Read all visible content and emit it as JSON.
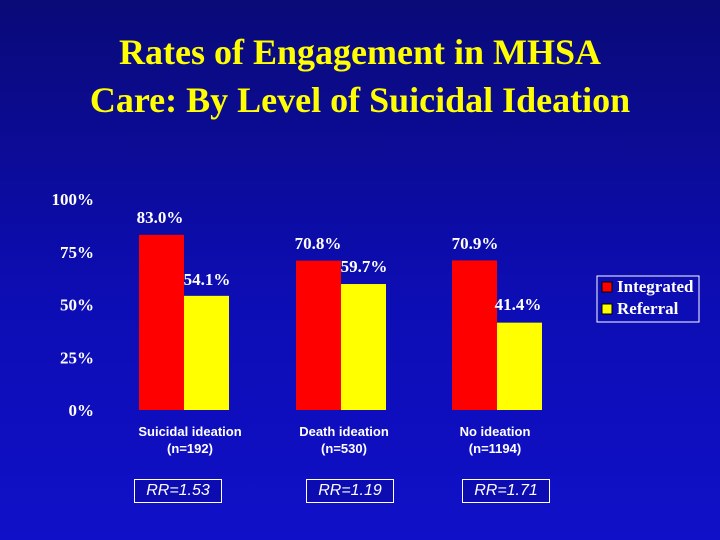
{
  "title_lines": [
    "Rates of Engagement in MHSA",
    "Care: By Level of Suicidal Ideation"
  ],
  "colors": {
    "integrated": "#ff0000",
    "referral": "#ffff00",
    "title": "#ffff00",
    "text": "#ffffff"
  },
  "chart_data": {
    "type": "bar",
    "title": "Rates of Engagement in MHSA Care: By Level of Suicidal Ideation",
    "categories": [
      [
        "Suicidal ideation",
        "(n=192)"
      ],
      [
        "Death ideation",
        "(n=530)"
      ],
      [
        "No ideation",
        "(n=1194)"
      ]
    ],
    "series": [
      {
        "name": "Integrated",
        "values": [
          83.0,
          70.8,
          70.9
        ],
        "labels": [
          "83.0%",
          "70.8%",
          "70.9%"
        ]
      },
      {
        "name": "Referral",
        "values": [
          54.1,
          59.7,
          41.4
        ],
        "labels": [
          "54.1%",
          "59.7%",
          "41.4%"
        ]
      }
    ],
    "ylim": [
      0,
      100
    ],
    "yticks": [
      "0%",
      "25%",
      "50%",
      "75%",
      "100%"
    ],
    "legend": "right",
    "grid": false
  },
  "rr_labels": [
    "RR=1.53",
    "RR=1.19",
    "RR=1.71"
  ]
}
